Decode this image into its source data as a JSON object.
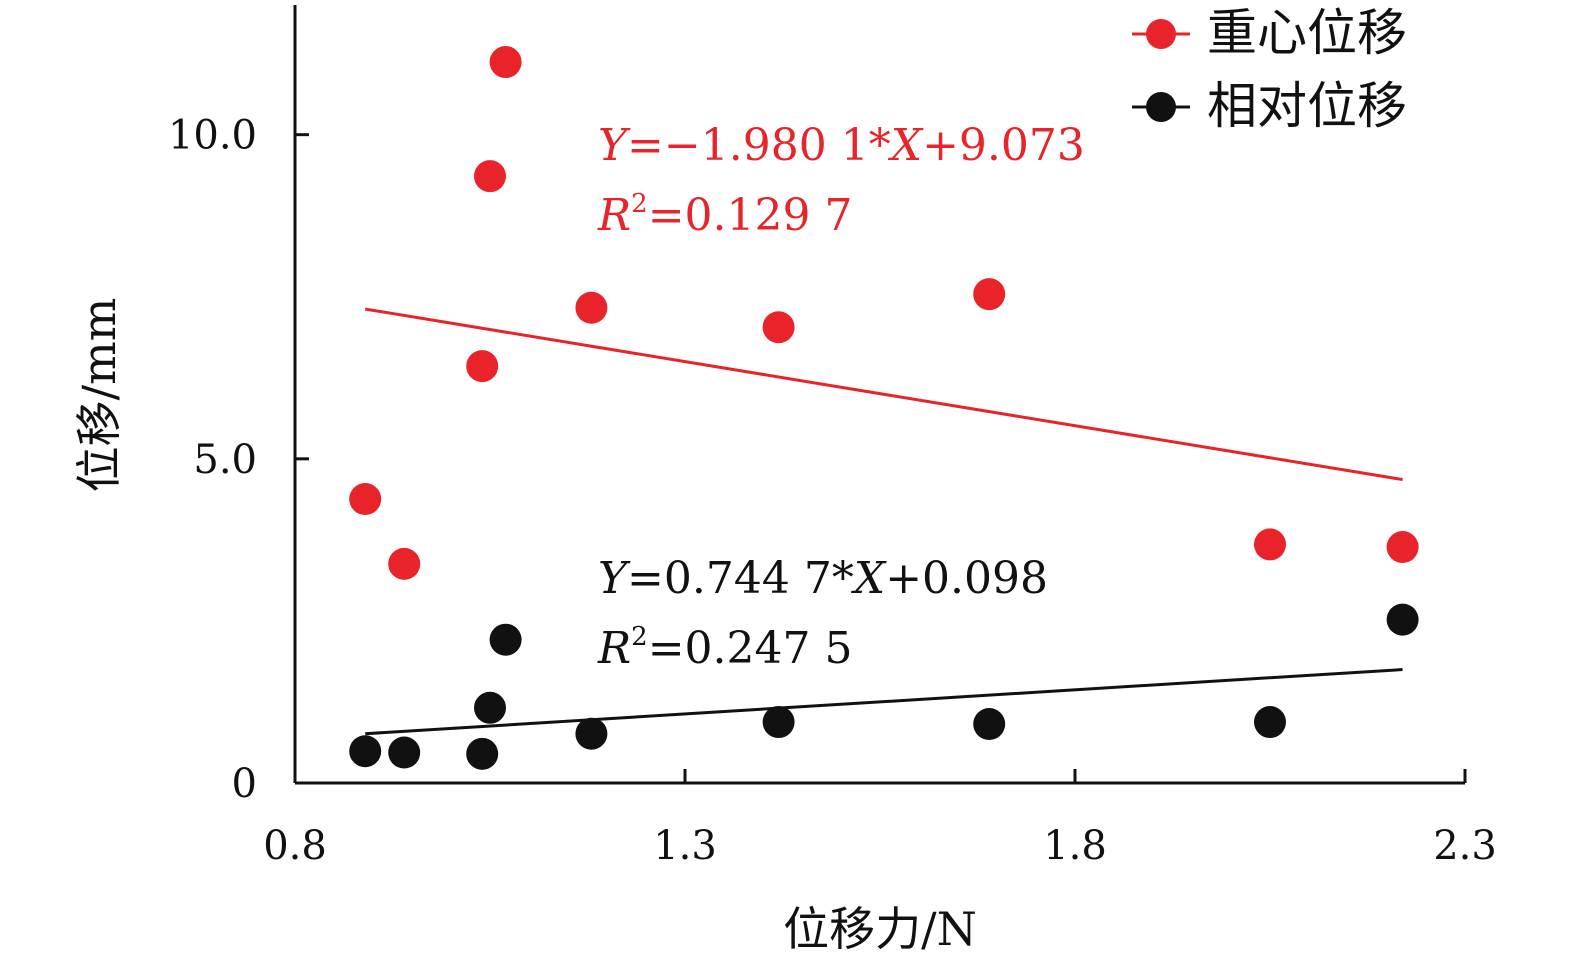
{
  "chart_data": {
    "type": "scatter",
    "xlabel": "位移力/N",
    "ylabel": "位移/mm",
    "xlim": [
      0.8,
      2.3
    ],
    "ylim": [
      0,
      12
    ],
    "x_ticks": [
      "0.8",
      "1.3",
      "1.8",
      "2.3"
    ],
    "y_ticks": [
      "0",
      "5.0",
      "10.0"
    ],
    "x_tick_values": [
      0.8,
      1.3,
      1.8,
      2.3
    ],
    "y_tick_values": [
      0,
      5,
      10
    ],
    "grid": false,
    "legend_position": "top-right",
    "series": [
      {
        "name": "重心位移",
        "color": "#e8242a",
        "x": [
          0.89,
          0.94,
          1.04,
          1.05,
          1.07,
          1.18,
          1.42,
          1.69,
          2.05,
          2.22
        ],
        "y": [
          4.38,
          3.38,
          6.43,
          9.36,
          11.12,
          7.33,
          7.03,
          7.54,
          3.68,
          3.64
        ],
        "fit": {
          "x": [
            0.89,
            2.22
          ],
          "y": [
            7.31,
            4.68
          ]
        },
        "annotation": {
          "line1_var": "Y",
          "line1_text": "=−1.980 1*",
          "line1_var2": "X",
          "line1_tail": "+9.073",
          "line2_var": "R",
          "line2_sup": "2",
          "line2_text": "=0.129 7"
        }
      },
      {
        "name": "相对位移",
        "color": "#111111",
        "x": [
          0.89,
          0.94,
          1.04,
          1.05,
          1.07,
          1.18,
          1.42,
          1.69,
          2.05,
          2.22
        ],
        "y": [
          0.49,
          0.47,
          0.45,
          1.16,
          2.21,
          0.76,
          0.94,
          0.91,
          0.94,
          2.52
        ],
        "fit": {
          "x": [
            0.89,
            2.22
          ],
          "y": [
            0.76,
            1.75
          ]
        },
        "annotation": {
          "line1_var": "Y",
          "line1_text": "=0.744 7*",
          "line1_var2": "X",
          "line1_tail": "+0.098",
          "line2_var": "R",
          "line2_sup": "2",
          "line2_text": "=0.247 5"
        }
      }
    ]
  }
}
